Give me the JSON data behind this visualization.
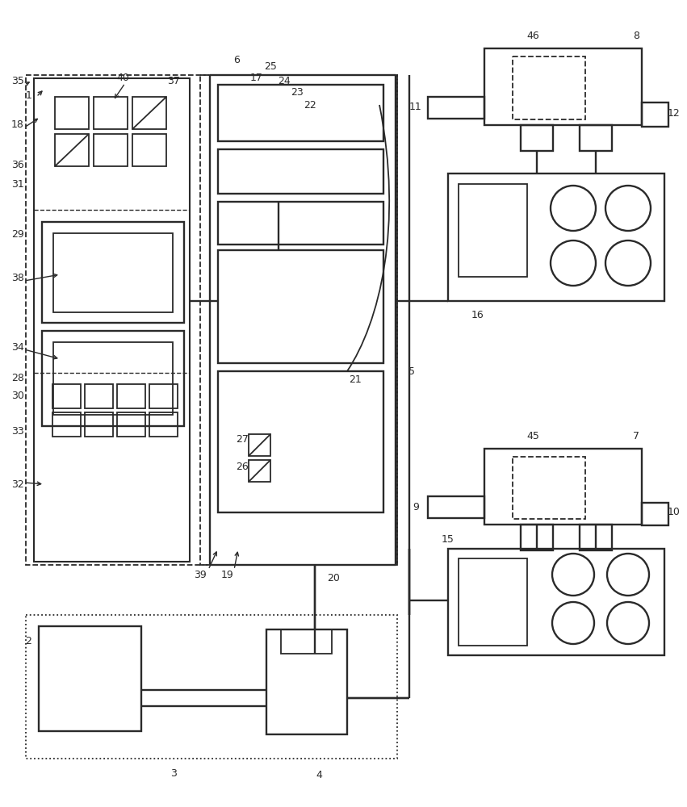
{
  "bg_color": "#ffffff",
  "lc": "#2a2a2a",
  "lw_main": 1.5,
  "lw_thin": 1.0,
  "lw_thick": 2.0,
  "fs": 9.0
}
